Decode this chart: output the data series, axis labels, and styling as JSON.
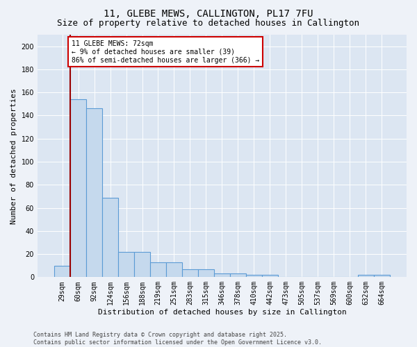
{
  "title": "11, GLEBE MEWS, CALLINGTON, PL17 7FU",
  "subtitle": "Size of property relative to detached houses in Callington",
  "xlabel": "Distribution of detached houses by size in Callington",
  "ylabel": "Number of detached properties",
  "categories": [
    "29sqm",
    "60sqm",
    "92sqm",
    "124sqm",
    "156sqm",
    "188sqm",
    "219sqm",
    "251sqm",
    "283sqm",
    "315sqm",
    "346sqm",
    "378sqm",
    "410sqm",
    "442sqm",
    "473sqm",
    "505sqm",
    "537sqm",
    "569sqm",
    "600sqm",
    "632sqm",
    "664sqm"
  ],
  "values": [
    10,
    154,
    146,
    69,
    22,
    22,
    13,
    13,
    7,
    7,
    3,
    3,
    2,
    2,
    0,
    0,
    0,
    0,
    0,
    2,
    2
  ],
  "bar_color": "#c5d9ed",
  "bar_edge_color": "#5b9bd5",
  "red_line_x": 1.0,
  "annotation_text": "11 GLEBE MEWS: 72sqm\n← 9% of detached houses are smaller (39)\n86% of semi-detached houses are larger (366) →",
  "annotation_box_color": "#ffffff",
  "annotation_box_edge_color": "#cc0000",
  "ylim": [
    0,
    210
  ],
  "yticks": [
    0,
    20,
    40,
    60,
    80,
    100,
    120,
    140,
    160,
    180,
    200
  ],
  "footer_line1": "Contains HM Land Registry data © Crown copyright and database right 2025.",
  "footer_line2": "Contains public sector information licensed under the Open Government Licence v3.0.",
  "bg_color": "#eef2f8",
  "plot_bg_color": "#dce6f2",
  "grid_color": "#ffffff",
  "title_fontsize": 10,
  "subtitle_fontsize": 9,
  "xlabel_fontsize": 8,
  "ylabel_fontsize": 8,
  "tick_fontsize": 7,
  "footer_fontsize": 6,
  "annotation_fontsize": 7
}
